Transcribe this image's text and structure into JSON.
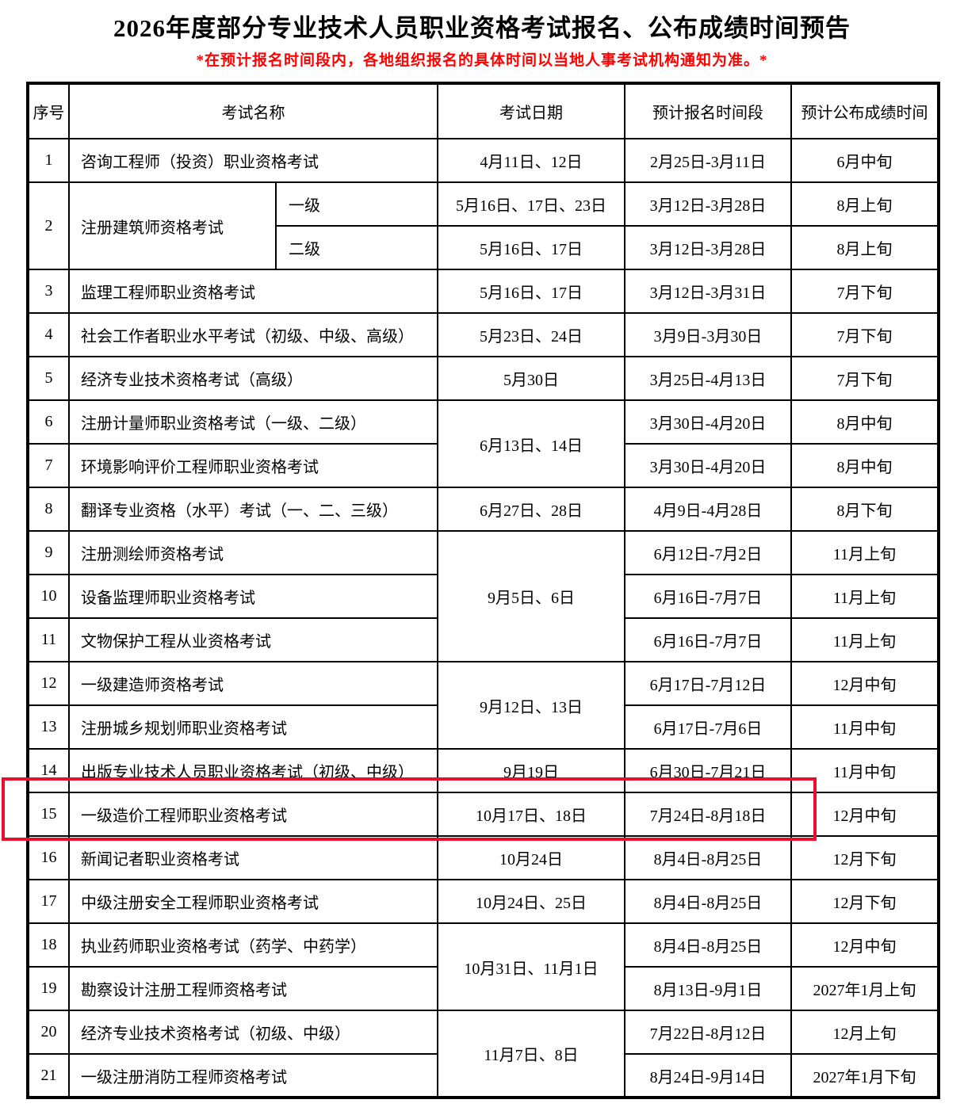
{
  "title": "2026年度部分专业技术人员职业资格考试报名、公布成绩时间预告",
  "note": "*在预计报名时间段内，各地组织报名的具体时间以当地人事考试机构通知为准。*",
  "colors": {
    "note_red": "#ff0000",
    "highlight_red": "#e8112d",
    "grid": "#000000"
  },
  "table": {
    "headers": [
      "序号",
      "考试名称",
      "考试日期",
      "预计报名时间段",
      "预计公布成绩时间"
    ],
    "rows": [
      {
        "no": "1",
        "name": "咨询工程师（投资）职业资格考试",
        "date": "4月11日、12日",
        "reg": "2月25日-3月11日",
        "result": "6月中旬"
      },
      {
        "no": "2",
        "name": "注册建筑师资格考试",
        "levels": [
          {
            "label": "一级",
            "date": "5月16日、17日、23日",
            "reg": "3月12日-3月28日",
            "result": "8月上旬"
          },
          {
            "label": "二级",
            "date": "5月16日、17日",
            "reg": "3月12日-3月28日",
            "result": "8月上旬"
          }
        ]
      },
      {
        "no": "3",
        "name": "监理工程师职业资格考试",
        "date": "5月16日、17日",
        "reg": "3月12日-3月31日",
        "result": "7月下旬"
      },
      {
        "no": "4",
        "name": "社会工作者职业水平考试（初级、中级、高级）",
        "date": "5月23日、24日",
        "reg": "3月9日-3月30日",
        "result": "7月下旬"
      },
      {
        "no": "5",
        "name": "经济专业技术资格考试（高级）",
        "date": "5月30日",
        "reg": "3月25日-4月13日",
        "result": "7月下旬"
      },
      {
        "no": "6",
        "name": "注册计量师职业资格考试（一级、二级）",
        "date": "6月13日、14日",
        "reg": "3月30日-4月20日",
        "result": "8月中旬"
      },
      {
        "no": "7",
        "name": "环境影响评价工程师职业资格考试",
        "reg": "3月30日-4月20日",
        "result": "8月中旬"
      },
      {
        "no": "8",
        "name": "翻译专业资格（水平）考试（一、二、三级）",
        "date": "6月27日、28日",
        "reg": "4月9日-4月28日",
        "result": "8月下旬"
      },
      {
        "no": "9",
        "name": "注册测绘师资格考试",
        "date": "9月5日、6日",
        "reg": "6月12日-7月2日",
        "result": "11月上旬"
      },
      {
        "no": "10",
        "name": "设备监理师职业资格考试",
        "reg": "6月16日-7月7日",
        "result": "11月上旬"
      },
      {
        "no": "11",
        "name": "文物保护工程从业资格考试",
        "reg": "6月16日-7月7日",
        "result": "11月上旬"
      },
      {
        "no": "12",
        "name": "一级建造师资格考试",
        "date": "9月12日、13日",
        "reg": "6月17日-7月12日",
        "result": "12月中旬"
      },
      {
        "no": "13",
        "name": "注册城乡规划师职业资格考试",
        "reg": "6月17日-7月6日",
        "result": "11月中旬"
      },
      {
        "no": "14",
        "name": "出版专业技术人员职业资格考试（初级、中级）",
        "date": "9月19日",
        "reg": "6月30日-7月21日",
        "result": "11月中旬"
      },
      {
        "no": "15",
        "name": "一级造价工程师职业资格考试",
        "date": "10月17日、18日",
        "reg": "7月24日-8月18日",
        "result": "12月中旬",
        "highlighted": true
      },
      {
        "no": "16",
        "name": "新闻记者职业资格考试",
        "date": "10月24日",
        "reg": "8月4日-8月25日",
        "result": "12月下旬"
      },
      {
        "no": "17",
        "name": "中级注册安全工程师职业资格考试",
        "date": "10月24日、25日",
        "reg": "8月4日-8月25日",
        "result": "12月下旬"
      },
      {
        "no": "18",
        "name": "执业药师职业资格考试（药学、中药学）",
        "date": "10月31日、11月1日",
        "reg": "8月4日-8月25日",
        "result": "12月中旬"
      },
      {
        "no": "19",
        "name": "勘察设计注册工程师资格考试",
        "reg": "8月13日-9月1日",
        "result": "2027年1月上旬"
      },
      {
        "no": "20",
        "name": "经济专业技术资格考试（初级、中级）",
        "date": "11月7日、8日",
        "reg": "7月22日-8月12日",
        "result": "12月上旬"
      },
      {
        "no": "21",
        "name": "一级注册消防工程师资格考试",
        "reg": "8月24日-9月14日",
        "result": "2027年1月下旬"
      }
    ]
  }
}
